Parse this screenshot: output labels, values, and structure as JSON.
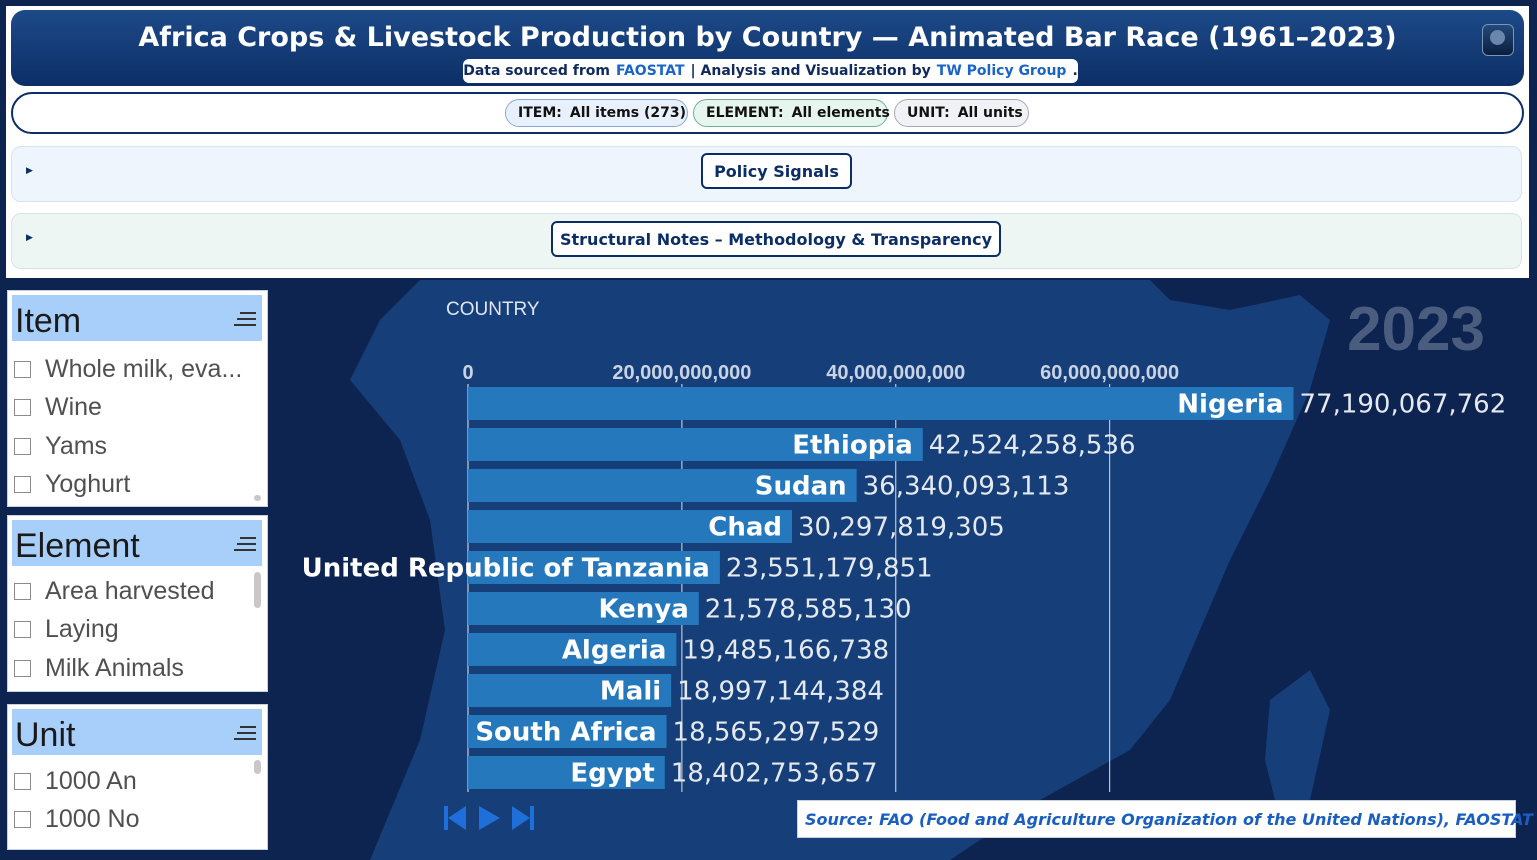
{
  "header": {
    "title": "Africa Crops & Livestock Production by Country — Animated Bar Race (1961–2023)",
    "source_prefix": "Data sourced from",
    "source_link": "FAOSTAT",
    "analysis_prefix": "| Analysis and Visualization by",
    "analysis_link": "TW Policy Group",
    "analysis_suffix": "."
  },
  "filters": [
    {
      "label": "ITEM:",
      "value": "All items (273)"
    },
    {
      "label": "ELEMENT:",
      "value": "All elements"
    },
    {
      "label": "UNIT:",
      "value": "All units"
    }
  ],
  "expanders": [
    {
      "label": "Policy Signals"
    },
    {
      "label": "Structural Notes – Methodology & Transparency"
    }
  ],
  "slicers": [
    {
      "title": "Item",
      "items": [
        "Whole milk, eva...",
        "Wine",
        "Yams",
        "Yoghurt"
      ]
    },
    {
      "title": "Element",
      "items": [
        "Area harvested",
        "Laying",
        "Milk Animals"
      ]
    },
    {
      "title": "Unit",
      "items": [
        "1000 An",
        "1000 No"
      ]
    }
  ],
  "controls": [
    {
      "icon": "skip-back-icon"
    },
    {
      "icon": "play-icon"
    },
    {
      "icon": "skip-forward-icon"
    }
  ],
  "source_note": "Source: FAO (Food and Agriculture Organization of the United Nations), FAOSTAT QCL",
  "colors": {
    "background": "#0d2350",
    "map": "#163e78",
    "bar": "#2678bd",
    "header": "#0c2e66",
    "year": "#4a5d7e",
    "slicer_header": "#a8cffa"
  },
  "chart_data": {
    "type": "bar",
    "orientation": "horizontal",
    "axis_title": "COUNTRY",
    "year_label": "2023",
    "categories": [
      "Nigeria",
      "Ethiopia",
      "Sudan",
      "Chad",
      "United Republic of Tanzania",
      "Kenya",
      "Algeria",
      "Mali",
      "South Africa",
      "Egypt"
    ],
    "values": [
      77190067762,
      42524258536,
      36340093113,
      30297819305,
      23551179851,
      21578585130,
      19485166738,
      18997144384,
      18565297529,
      18402753657
    ],
    "value_labels": [
      "77,190,067,762",
      "42,524,258,536",
      "36,340,093,113",
      "30,297,819,305",
      "23,551,179,851",
      "21,578,585,130",
      "19,485,166,738",
      "18,997,144,384",
      "18,565,297,529",
      "18,402,753,657"
    ],
    "x_ticks": [
      0,
      20000000000,
      40000000000,
      60000000000
    ],
    "x_tick_labels": [
      "0",
      "20,000,000,000",
      "40,000,000,000",
      "60,000,000,000"
    ],
    "xlim": [
      0,
      80000000000
    ],
    "grid": true,
    "xaxis_position": "top"
  }
}
